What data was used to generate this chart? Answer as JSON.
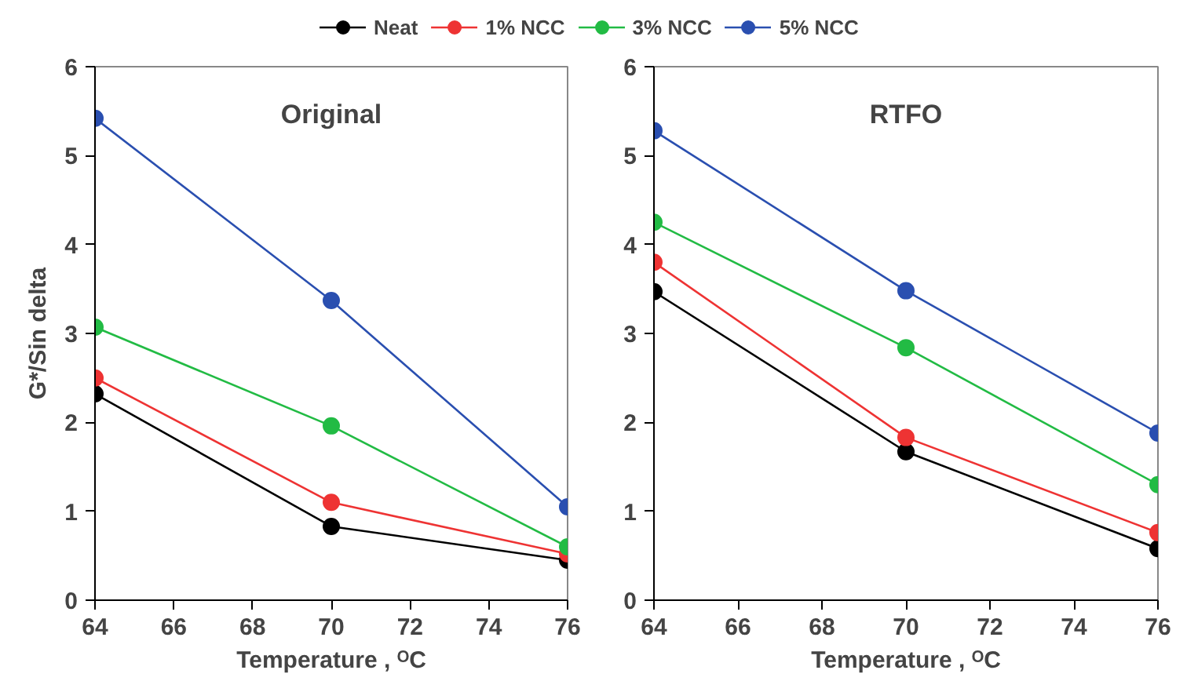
{
  "chart_data": [
    {
      "type": "line",
      "title": "Original",
      "xlabel": "Temperature , ᴼC",
      "ylabel": "G*/Sin delta",
      "x": [
        64,
        70,
        76
      ],
      "xlim": [
        64,
        76
      ],
      "xticks": [
        64,
        66,
        68,
        70,
        72,
        74,
        76
      ],
      "ylim": [
        0,
        6
      ],
      "yticks": [
        0,
        1,
        2,
        3,
        4,
        5,
        6
      ],
      "marker": "circle",
      "legend": "top",
      "grid": false,
      "series": [
        {
          "name": "Neat",
          "color": "#000000",
          "values": [
            2.32,
            0.83,
            0.45
          ]
        },
        {
          "name": "1% NCC",
          "color": "#ee3333",
          "values": [
            2.5,
            1.1,
            0.52
          ]
        },
        {
          "name": "3% NCC",
          "color": "#22bb44",
          "values": [
            3.07,
            1.96,
            0.6
          ]
        },
        {
          "name": "5% NCC",
          "color": "#2a4fb0",
          "values": [
            5.42,
            3.37,
            1.05
          ]
        }
      ]
    },
    {
      "type": "line",
      "title": "RTFO",
      "xlabel": "Temperature , ᴼC",
      "x": [
        64,
        70,
        76
      ],
      "xlim": [
        64,
        76
      ],
      "xticks": [
        64,
        66,
        68,
        70,
        72,
        74,
        76
      ],
      "ylim": [
        0,
        6
      ],
      "yticks": [
        0,
        1,
        2,
        3,
        4,
        5,
        6
      ],
      "marker": "circle",
      "grid": false,
      "series": [
        {
          "color": "#000000",
          "values": [
            3.47,
            1.67,
            0.58
          ]
        },
        {
          "color": "#ee3333",
          "values": [
            3.8,
            1.83,
            0.76
          ]
        },
        {
          "color": "#22bb44",
          "values": [
            4.25,
            2.84,
            1.3
          ]
        },
        {
          "color": "#2a4fb0",
          "values": [
            5.28,
            3.48,
            1.88
          ]
        }
      ]
    }
  ]
}
